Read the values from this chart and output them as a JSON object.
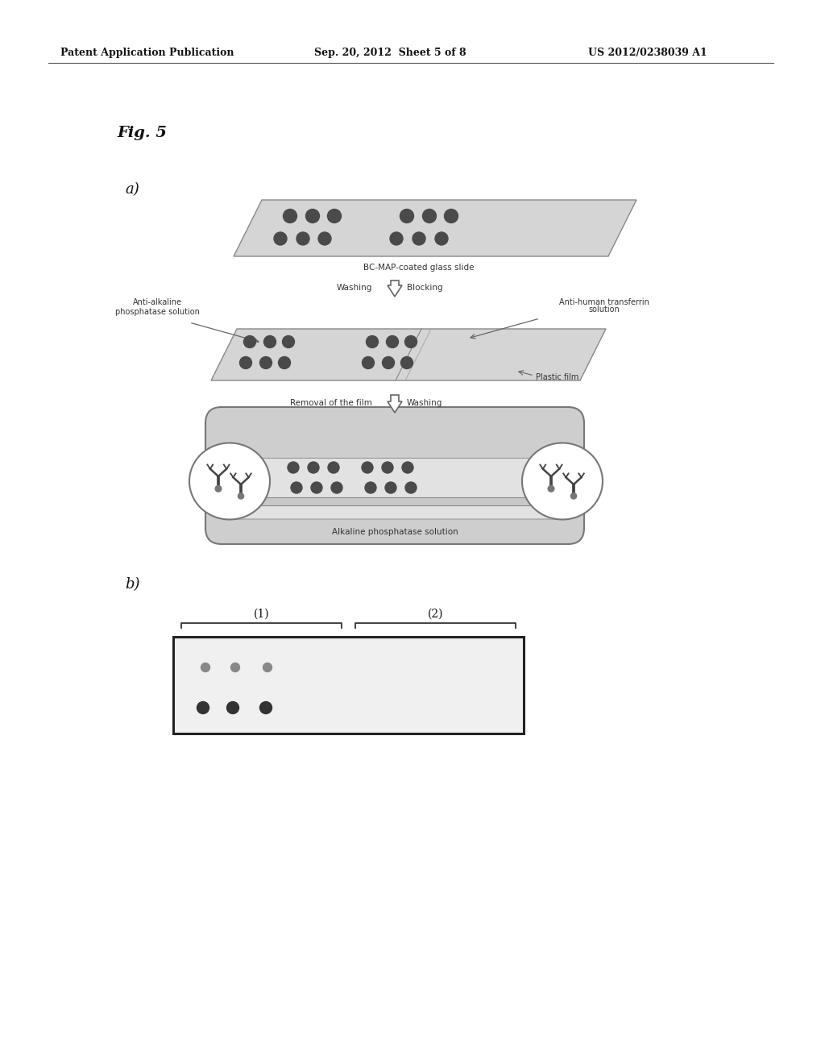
{
  "bg_color": "#ffffff",
  "header_left": "Patent Application Publication",
  "header_center": "Sep. 20, 2012  Sheet 5 of 8",
  "header_right": "US 2012/0238039 A1",
  "fig_label": "Fig. 5",
  "label_a": "a)",
  "label_b": "b)",
  "slide1_label": "BC-MAP-coated glass slide",
  "label_washing": "Washing",
  "label_blocking": "Blocking",
  "label_anti_alk_line1": "Anti-alkaline",
  "label_anti_alk_line2": "phosphatase solution",
  "label_anti_human_line1": "Anti-human transferrin",
  "label_anti_human_line2": "solution",
  "label_plastic_film": "Plastic film",
  "label_removal": "Removal of the film",
  "label_washing2": "Washing",
  "label_alk_phos": "Alkaline phosphatase solution",
  "label_1": "(1)",
  "label_2": "(2)",
  "slide_color": "#d5d5d5",
  "slide_border": "#888888",
  "dot_color": "#4a4a4a",
  "text_color": "#333333",
  "arrow_color": "#666666"
}
